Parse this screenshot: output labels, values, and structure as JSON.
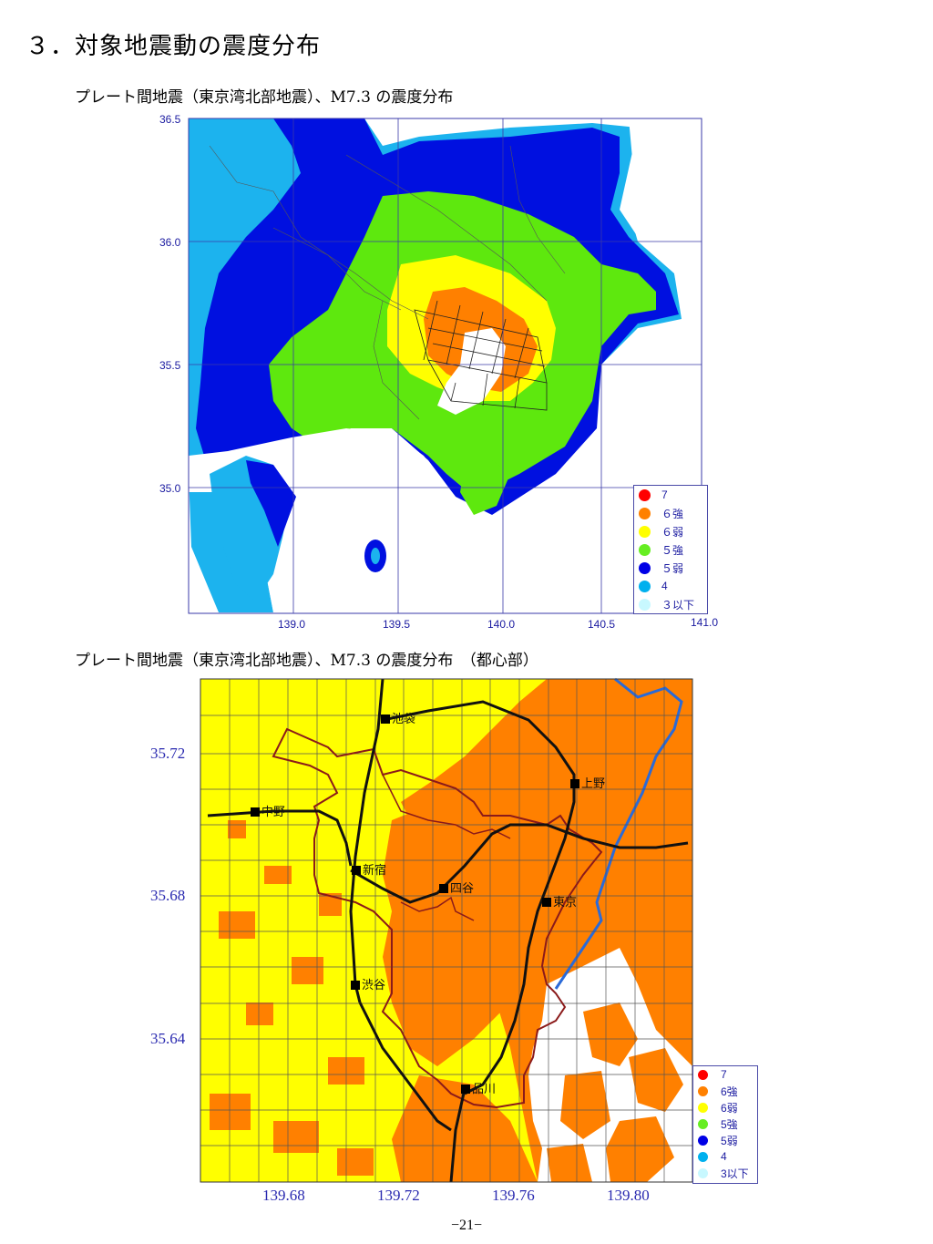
{
  "page": {
    "heading": "３．対象地震動の震度分布",
    "page_number": "−21−"
  },
  "map1": {
    "subtitle_pre": "プレート間地震（東京湾北部地震）、",
    "subtitle_m": "M7.3",
    "subtitle_post": " の震度分布",
    "lat_labels": [
      "36.5",
      "36.0",
      "35.5",
      "35.0"
    ],
    "lon_labels": [
      "139.0",
      "139.5",
      "140.0",
      "140.5",
      "141.0"
    ]
  },
  "map2": {
    "subtitle_pre": "プレート間地震（東京湾北部地震）、",
    "subtitle_m": "M7.3",
    "subtitle_post": " の震度分布　（都心部）",
    "lat_labels": [
      "35.72",
      "35.68",
      "35.64"
    ],
    "lon_labels": [
      "139.68",
      "139.72",
      "139.76",
      "139.80"
    ],
    "stations": [
      {
        "name": "池袋"
      },
      {
        "name": "上野"
      },
      {
        "name": "中野"
      },
      {
        "name": "新宿"
      },
      {
        "name": "四谷"
      },
      {
        "name": "東京"
      },
      {
        "name": "渋谷"
      },
      {
        "name": "品川"
      }
    ]
  },
  "legend1": [
    {
      "label": "7",
      "color": "#ff0000"
    },
    {
      "label": "６強",
      "color": "#ff8000"
    },
    {
      "label": "６弱",
      "color": "#ffff00"
    },
    {
      "label": "５強",
      "color": "#66ee22"
    },
    {
      "label": "５弱",
      "color": "#0000e6"
    },
    {
      "label": "4",
      "color": "#00b0ee"
    },
    {
      "label": "３以下",
      "color": "#c8f8ff"
    }
  ],
  "legend2": [
    {
      "label": "7",
      "color": "#ff0000"
    },
    {
      "label": "6強",
      "color": "#ff8000"
    },
    {
      "label": "6弱",
      "color": "#ffff00"
    },
    {
      "label": "5強",
      "color": "#66ee22"
    },
    {
      "label": "5弱",
      "color": "#0000e6"
    },
    {
      "label": "4",
      "color": "#00b0ee"
    },
    {
      "label": "3以下",
      "color": "#c8f8ff"
    }
  ]
}
